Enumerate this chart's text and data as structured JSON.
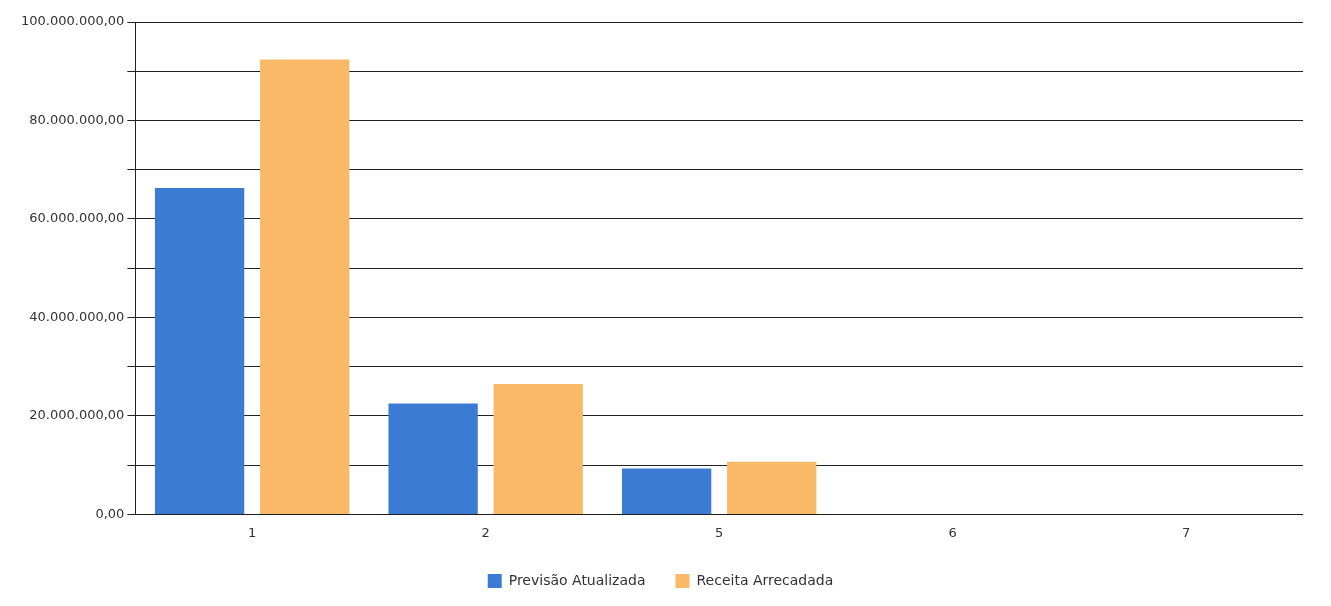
{
  "chart_data": {
    "type": "bar",
    "categories": [
      "1",
      "2",
      "5",
      "6",
      "7"
    ],
    "series": [
      {
        "name": "Previsão Atualizada",
        "color": "#3b7bd4",
        "values": [
          66300000,
          22500000,
          9300000,
          0,
          0
        ]
      },
      {
        "name": "Receita Arrecadada",
        "color": "#f9b968",
        "values": [
          92400000,
          26500000,
          10700000,
          0,
          0
        ]
      }
    ],
    "ylim": [
      0,
      100000000
    ],
    "yticks": [
      {
        "value": 0,
        "label": "0,00"
      },
      {
        "value": 10000000,
        "label": null
      },
      {
        "value": 20000000,
        "label": "20.000.000,00"
      },
      {
        "value": 30000000,
        "label": null
      },
      {
        "value": 40000000,
        "label": "40.000.000,00"
      },
      {
        "value": 50000000,
        "label": null
      },
      {
        "value": 60000000,
        "label": "60.000.000,00"
      },
      {
        "value": 70000000,
        "label": null
      },
      {
        "value": 80000000,
        "label": "80.000.000,00"
      },
      {
        "value": 90000000,
        "label": null
      },
      {
        "value": 100000000,
        "label": "100.000.000,00"
      }
    ],
    "grid": "y",
    "legend": "bottom"
  }
}
